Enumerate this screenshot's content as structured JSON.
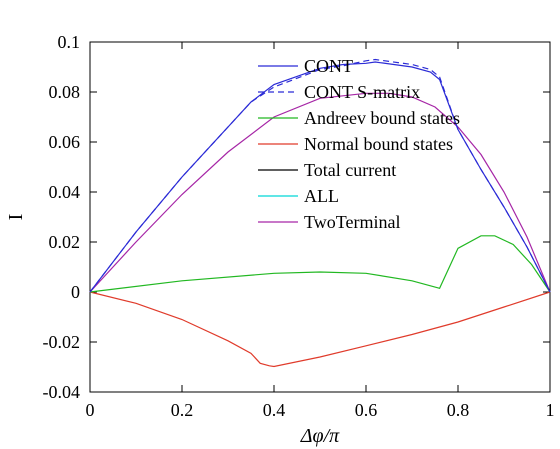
{
  "chart_data": {
    "type": "line",
    "xlabel": "Δφ/π",
    "ylabel": "I",
    "xlim": [
      0,
      1
    ],
    "ylim": [
      -0.04,
      0.1
    ],
    "xticks": [
      0,
      0.2,
      0.4,
      0.6,
      0.8,
      1
    ],
    "xtick_labels": [
      "0",
      "0.2",
      "0.4",
      "0.6",
      "0.8",
      "1"
    ],
    "yticks": [
      -0.04,
      -0.02,
      0,
      0.02,
      0.04,
      0.06,
      0.08,
      0.1
    ],
    "ytick_labels": [
      "-0.04",
      "-0.02",
      "0",
      "0.02",
      "0.04",
      "0.06",
      "0.08",
      "0.1"
    ],
    "grid": false,
    "legend_position": "top-center",
    "series": [
      {
        "name": "CONT",
        "color": "#2b2bd6",
        "dash": "solid",
        "x": [
          0,
          0.1,
          0.2,
          0.3,
          0.35,
          0.4,
          0.5,
          0.55,
          0.6,
          0.62,
          0.7,
          0.74,
          0.76,
          0.8,
          0.85,
          0.9,
          0.95,
          1
        ],
        "y": [
          0,
          0.024,
          0.046,
          0.066,
          0.076,
          0.083,
          0.0895,
          0.091,
          0.0915,
          0.092,
          0.09,
          0.088,
          0.085,
          0.065,
          0.049,
          0.034,
          0.018,
          0
        ]
      },
      {
        "name": "CONT S-matrix",
        "color": "#2b2bd6",
        "dash": "dashed",
        "x": [
          0,
          0.1,
          0.2,
          0.3,
          0.35,
          0.4,
          0.5,
          0.55,
          0.6,
          0.62,
          0.7,
          0.74,
          0.76,
          0.8,
          0.85,
          0.9,
          0.95,
          1
        ],
        "y": [
          0,
          0.024,
          0.046,
          0.066,
          0.076,
          0.082,
          0.089,
          0.0905,
          0.0925,
          0.093,
          0.091,
          0.089,
          0.086,
          0.065,
          0.049,
          0.034,
          0.018,
          0
        ]
      },
      {
        "name": "Andreev bound states",
        "color": "#22b822",
        "dash": "solid",
        "x": [
          0,
          0.2,
          0.4,
          0.5,
          0.6,
          0.7,
          0.74,
          0.76,
          0.8,
          0.85,
          0.88,
          0.92,
          0.96,
          1
        ],
        "y": [
          0,
          0.0045,
          0.0075,
          0.008,
          0.0075,
          0.0045,
          0.0025,
          0.0015,
          0.0175,
          0.0225,
          0.0225,
          0.019,
          0.011,
          0
        ]
      },
      {
        "name": "Normal bound states",
        "color": "#e03b2b",
        "dash": "solid",
        "x": [
          0,
          0.1,
          0.2,
          0.3,
          0.35,
          0.37,
          0.39,
          0.4,
          0.5,
          0.6,
          0.7,
          0.8,
          0.9,
          1
        ],
        "y": [
          0,
          -0.0045,
          -0.011,
          -0.0195,
          -0.0245,
          -0.0285,
          -0.0295,
          -0.0298,
          -0.026,
          -0.0215,
          -0.017,
          -0.012,
          -0.006,
          0
        ]
      },
      {
        "name": "Total current",
        "color": "#000000",
        "dash": "solid",
        "x": [],
        "y": []
      },
      {
        "name": "ALL",
        "color": "#00d8d8",
        "dash": "solid",
        "x": [],
        "y": []
      },
      {
        "name": "TwoTerminal",
        "color": "#a626a6",
        "dash": "solid",
        "x": [
          0,
          0.1,
          0.2,
          0.3,
          0.4,
          0.5,
          0.6,
          0.65,
          0.7,
          0.75,
          0.8,
          0.85,
          0.9,
          0.95,
          1
        ],
        "y": [
          0,
          0.02,
          0.039,
          0.056,
          0.07,
          0.0775,
          0.0795,
          0.0795,
          0.078,
          0.074,
          0.066,
          0.055,
          0.04,
          0.022,
          0
        ]
      }
    ]
  }
}
